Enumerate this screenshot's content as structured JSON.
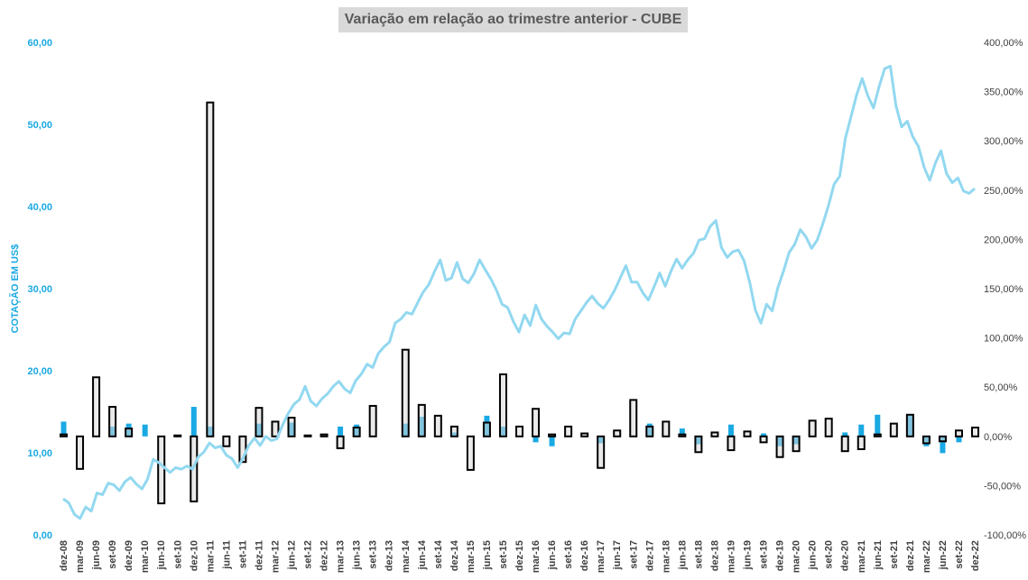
{
  "chart_data": {
    "type": "line",
    "title": "Variação em relação ao trimestre anterior - CUBE",
    "ylabel": "COTAÇÃO EM US$",
    "y_left": {
      "lim": [
        0,
        60
      ],
      "ticks": [
        "0,00",
        "10,00",
        "20,00",
        "30,00",
        "40,00",
        "50,00",
        "60,00"
      ]
    },
    "y_right": {
      "lim": [
        -100,
        400
      ],
      "ticks": [
        "-100,00%",
        "-50,00%",
        "0,00%",
        "50,00%",
        "100,00%",
        "150,00%",
        "200,00%",
        "250,00%",
        "300,00%",
        "350,00%",
        "400,00%"
      ]
    },
    "x_ticks": [
      "dez-08",
      "mar-09",
      "jun-09",
      "set-09",
      "dez-09",
      "mar-10",
      "jun-10",
      "set-10",
      "dez-10",
      "mar-11",
      "jun-11",
      "set-11",
      "dez-11",
      "mar-12",
      "jun-12",
      "set-12",
      "dez-12",
      "mar-13",
      "jun-13",
      "set-13",
      "dez-13",
      "mar-14",
      "jun-14",
      "set-14",
      "dez-14",
      "mar-15",
      "jun-15",
      "set-15",
      "dez-15",
      "mar-16",
      "jun-16",
      "set-16",
      "dez-16",
      "mar-17",
      "jun-17",
      "set-17",
      "dez-17",
      "mar-18",
      "jun-18",
      "set-18",
      "dez-18",
      "mar-19",
      "jun-19",
      "set-19",
      "dez-19",
      "mar-20",
      "jun-20",
      "set-20",
      "dez-20",
      "mar-21",
      "jun-21",
      "set-21",
      "dez-21",
      "mar-22",
      "jun-22",
      "set-22",
      "dez-22"
    ],
    "colors": {
      "line": "#92d8f0",
      "blue_bar": "#1aa9e3",
      "outline_bar_fill": "#d9d9d9",
      "outline_bar_stroke": "#000000",
      "axis_text_left": "#1aa9e3"
    },
    "series": [
      {
        "kind": "line",
        "axis": "left",
        "points_per_quarter": 3,
        "values": [
          4.4,
          3.9,
          2.5,
          2.0,
          3.4,
          2.9,
          5.1,
          4.9,
          6.3,
          6.1,
          5.4,
          6.5,
          7.0,
          6.2,
          5.6,
          6.8,
          9.2,
          8.8,
          8.2,
          7.6,
          8.2,
          8.0,
          8.4,
          8.0,
          9.5,
          10.1,
          11.2,
          10.6,
          10.8,
          9.7,
          9.3,
          8.2,
          9.4,
          10.9,
          11.8,
          10.9,
          12.0,
          11.5,
          11.7,
          13.4,
          14.8,
          15.9,
          16.5,
          18.1,
          16.3,
          15.7,
          16.6,
          17.2,
          18.1,
          18.7,
          17.8,
          17.3,
          18.8,
          19.6,
          20.8,
          20.4,
          22.1,
          22.9,
          23.5,
          25.8,
          26.3,
          27.1,
          26.9,
          28.3,
          29.6,
          30.5,
          32.1,
          33.5,
          31.0,
          31.3,
          33.2,
          31.2,
          30.7,
          31.8,
          33.5,
          32.3,
          31.2,
          29.8,
          28.1,
          27.7,
          26.0,
          24.7,
          26.8,
          25.5,
          28.0,
          26.3,
          25.4,
          24.7,
          23.9,
          24.6,
          24.5,
          26.3,
          27.3,
          28.3,
          29.1,
          28.2,
          27.6,
          28.6,
          29.8,
          31.3,
          32.8,
          30.8,
          30.8,
          29.5,
          28.6,
          30.2,
          31.9,
          30.3,
          32.1,
          33.6,
          32.5,
          33.5,
          34.3,
          35.9,
          36.1,
          37.6,
          38.3,
          35.0,
          33.8,
          34.5,
          34.7,
          33.4,
          30.8,
          27.4,
          25.8,
          28.1,
          27.3,
          30.1,
          32.1,
          34.4,
          35.4,
          37.2,
          36.3,
          34.9,
          35.9,
          37.9,
          40.1,
          42.7,
          43.7,
          48.3,
          50.9,
          53.6,
          55.6,
          53.5,
          52.0,
          54.6,
          56.8,
          57.1,
          52.3,
          49.7,
          50.4,
          48.5,
          47.3,
          44.8,
          43.2,
          45.3,
          46.8,
          44.0,
          42.9,
          43.5,
          41.9,
          41.6,
          42.2
        ]
      },
      {
        "kind": "bar",
        "name": "blue",
        "axis": "right",
        "values": [
          15,
          null,
          null,
          10,
          13,
          12,
          null,
          null,
          30,
          10,
          null,
          null,
          13,
          null,
          14,
          null,
          null,
          10,
          12,
          null,
          null,
          13,
          20,
          null,
          4,
          null,
          21,
          10,
          null,
          -6,
          -10,
          null,
          null,
          -7,
          null,
          null,
          13,
          null,
          8,
          -8,
          null,
          12,
          null,
          3,
          -10,
          -8,
          null,
          null,
          4,
          12,
          22,
          null,
          22,
          -10,
          -17,
          -6,
          null
        ]
      },
      {
        "kind": "bar",
        "name": "outline",
        "axis": "right",
        "values": [
          2,
          -33,
          60,
          30,
          8,
          null,
          -68,
          1,
          -66,
          339,
          -10,
          -26,
          29,
          15,
          19,
          1,
          2,
          -12,
          9,
          31,
          null,
          88,
          32,
          21,
          10,
          -34,
          14,
          63,
          10,
          28,
          2,
          10,
          3,
          -32,
          6,
          37,
          10,
          15,
          2,
          -16,
          4,
          -14,
          5,
          -6,
          -21,
          -15,
          16,
          18,
          -15,
          -13,
          2,
          13,
          22,
          -7,
          -5,
          6,
          9
        ]
      }
    ]
  }
}
